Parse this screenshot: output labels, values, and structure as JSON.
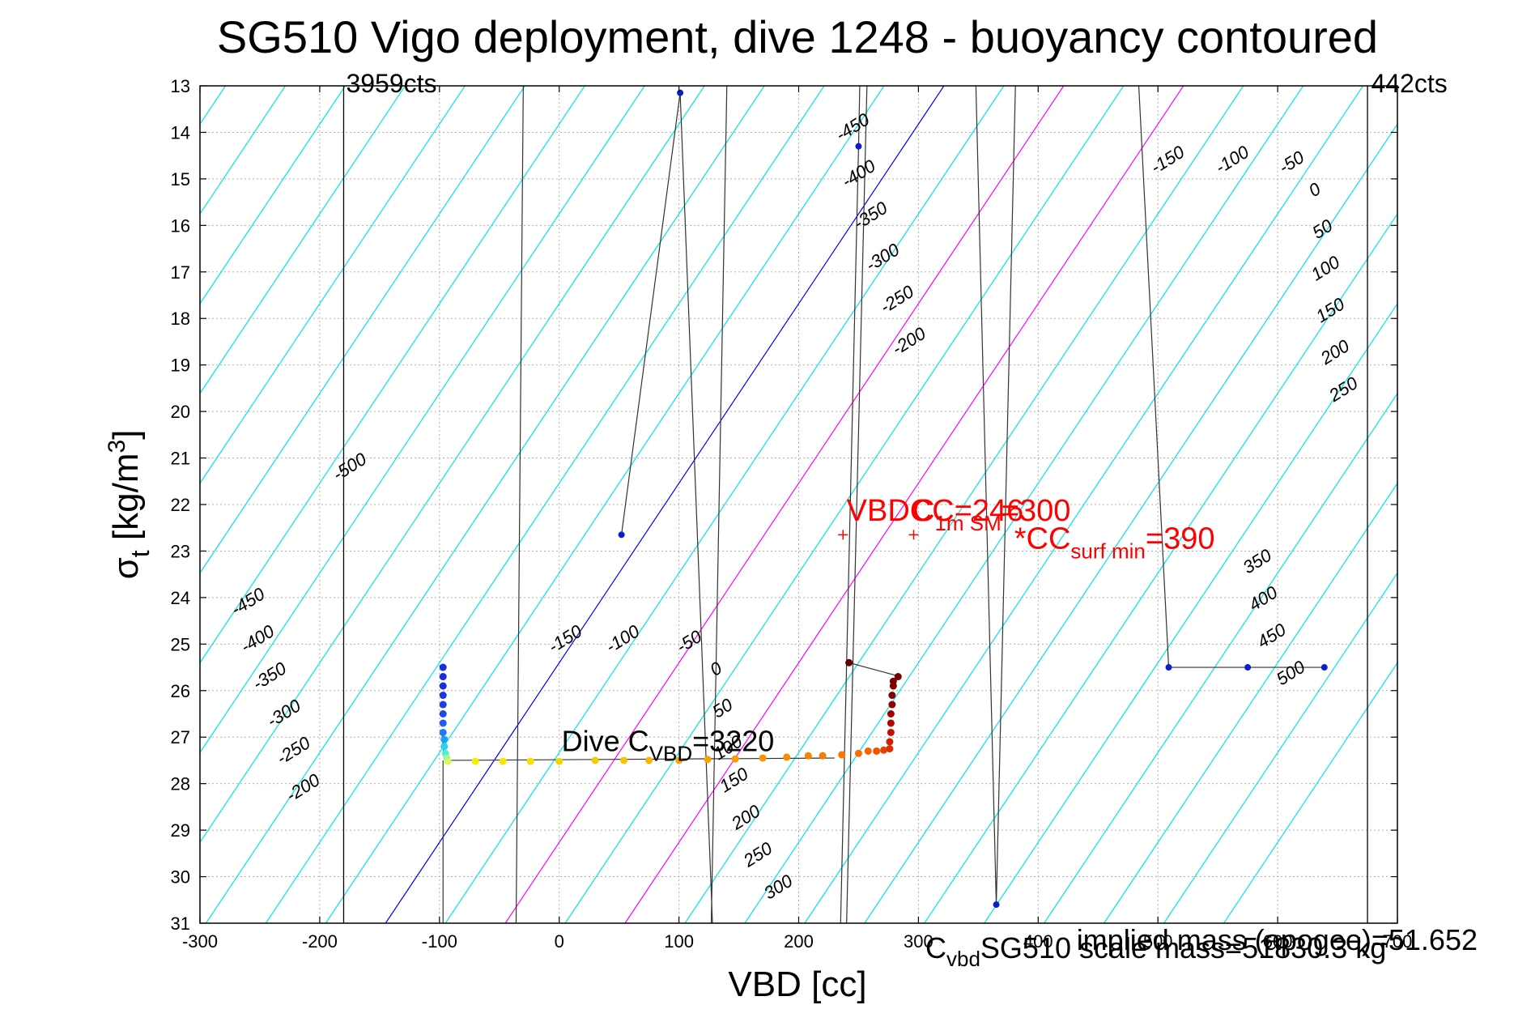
{
  "chart_data": {
    "type": "scatter",
    "title": "SG510 Vigo deployment, dive 1248 - buoyancy contoured",
    "xlabel": "VBD [cc]",
    "ylabel_main": "σ",
    "ylabel_sub": "t",
    "ylabel_unit_prefix": " [kg/m",
    "ylabel_unit_sup": "3",
    "ylabel_unit_suffix": "]",
    "xlim": [
      -300,
      700
    ],
    "ylim": [
      13,
      31
    ],
    "y_reversed": true,
    "grid": true,
    "x_ticks": [
      -300,
      -200,
      -100,
      0,
      100,
      200,
      300,
      400,
      500,
      600,
      700
    ],
    "x_tick_labels": [
      "-300",
      "-200",
      "-100",
      "0",
      "100",
      "200",
      "300",
      "400",
      "500",
      "600",
      "700"
    ],
    "y_ticks": [
      13,
      14,
      15,
      16,
      17,
      18,
      19,
      20,
      21,
      22,
      23,
      24,
      25,
      26,
      27,
      28,
      29,
      30,
      31
    ],
    "y_tick_labels": [
      "13",
      "14",
      "15",
      "16",
      "17",
      "18",
      "19",
      "20",
      "21",
      "22",
      "23",
      "24",
      "25",
      "26",
      "27",
      "28",
      "29",
      "30",
      "31"
    ],
    "contour_slope_sigma_per_cc": 0.0386,
    "contour_zero_x_at_sigma_31": -145,
    "contour_spacing_cc": 50,
    "contour_levels_cyan": [
      -500,
      -450,
      -400,
      -350,
      -300,
      -250,
      -200,
      -150,
      -100,
      -50,
      50,
      100,
      150,
      200,
      250,
      300,
      350,
      400,
      450,
      500
    ],
    "contour_levels_magenta": [
      100,
      200
    ],
    "contour_level_zero": 0,
    "colors": {
      "cyan": "#00e5e5",
      "blue": "#0000ff",
      "magenta": "#ff00ff",
      "red": "#ff0000",
      "black": "#000000",
      "grid": "#b0b0b0"
    },
    "contour_labels": [
      {
        "text": "-500",
        "x": -185,
        "y": 21.5
      },
      {
        "text": "-450",
        "x": 235,
        "y": 14.2
      },
      {
        "text": "-400",
        "x": 240,
        "y": 15.2
      },
      {
        "text": "-350",
        "x": 250,
        "y": 16.1
      },
      {
        "text": "-300",
        "x": 260,
        "y": 17.0
      },
      {
        "text": "-250",
        "x": 272,
        "y": 17.9
      },
      {
        "text": "-200",
        "x": 282,
        "y": 18.8
      },
      {
        "text": "-150",
        "x": 498,
        "y": 14.9
      },
      {
        "text": "-100",
        "x": 552,
        "y": 14.9
      },
      {
        "text": "-50",
        "x": 605,
        "y": 14.9
      },
      {
        "text": "0",
        "x": 630,
        "y": 15.4
      },
      {
        "text": "50",
        "x": 633,
        "y": 16.3
      },
      {
        "text": "100",
        "x": 632,
        "y": 17.2
      },
      {
        "text": "150",
        "x": 636,
        "y": 18.1
      },
      {
        "text": "200",
        "x": 640,
        "y": 19.0
      },
      {
        "text": "250",
        "x": 647,
        "y": 19.8
      },
      {
        "text": "-450",
        "x": -270,
        "y": 24.4
      },
      {
        "text": "-400",
        "x": -262,
        "y": 25.2
      },
      {
        "text": "-350",
        "x": -252,
        "y": 26.0
      },
      {
        "text": "-300",
        "x": -240,
        "y": 26.8
      },
      {
        "text": "-250",
        "x": -232,
        "y": 27.6
      },
      {
        "text": "-200",
        "x": -224,
        "y": 28.4
      },
      {
        "text": "-150",
        "x": -5,
        "y": 25.2
      },
      {
        "text": "-100",
        "x": 43,
        "y": 25.2
      },
      {
        "text": "-50",
        "x": 102,
        "y": 25.2
      },
      {
        "text": "0",
        "x": 130,
        "y": 25.7
      },
      {
        "text": "50",
        "x": 132,
        "y": 26.6
      },
      {
        "text": "100",
        "x": 133,
        "y": 27.5
      },
      {
        "text": "150",
        "x": 138,
        "y": 28.2
      },
      {
        "text": "200",
        "x": 148,
        "y": 29.0
      },
      {
        "text": "250",
        "x": 158,
        "y": 29.8
      },
      {
        "text": "300",
        "x": 175,
        "y": 30.5
      },
      {
        "text": "350",
        "x": 575,
        "y": 23.5
      },
      {
        "text": "400",
        "x": 580,
        "y": 24.3
      },
      {
        "text": "450",
        "x": 587,
        "y": 25.1
      },
      {
        "text": "500",
        "x": 603,
        "y": 25.9
      }
    ],
    "vertical_lines": [
      {
        "x": -180,
        "label": "3959cts",
        "label_x": -178
      },
      {
        "x": 675,
        "label": "442cts",
        "label_x": 678
      }
    ],
    "pump_trace": [
      [
        -183,
        31
      ],
      [
        -180,
        13
      ],
      [
        -30,
        13
      ],
      [
        -36,
        31
      ],
      [
        -36,
        30.6
      ],
      [
        48,
        13
      ],
      [
        55,
        13
      ],
      [
        104,
        13
      ],
      [
        106,
        31
      ],
      [
        127,
        31
      ],
      [
        127,
        30.6
      ],
      [
        140,
        13
      ],
      [
        143,
        31
      ],
      [
        163,
        31
      ],
      [
        163,
        30.6
      ],
      [
        184,
        13
      ],
      [
        191,
        31
      ],
      [
        208,
        31
      ],
      [
        208,
        30.6
      ],
      [
        227,
        13
      ],
      [
        240,
        31
      ],
      [
        240,
        29.5
      ],
      [
        257,
        13
      ],
      [
        303,
        13
      ],
      [
        307,
        31
      ]
    ],
    "black_lines": [
      [
        [
          52,
          22.65
        ],
        [
          101,
          13.15
        ],
        [
          102,
          13.1
        ],
        [
          128,
          31
        ]
      ],
      [
        [
          235,
          31
        ],
        [
          250,
          14.3
        ],
        [
          251,
          13
        ]
      ],
      [
        [
          348,
          13
        ],
        [
          365,
          30.6
        ],
        [
          366,
          31
        ],
        [
          381,
          13
        ]
      ],
      [
        [
          484,
          13
        ],
        [
          509,
          25.5
        ],
        [
          575,
          25.5
        ],
        [
          639,
          25.5
        ]
      ],
      [
        [
          242,
          25.4
        ],
        [
          285,
          25.7
        ]
      ],
      [
        [
          -98,
          26.9
        ],
        [
          -96,
          27.5
        ],
        [
          230,
          27.45
        ]
      ]
    ],
    "pump_points_blue": [
      {
        "x": 101,
        "y": 13.15
      },
      {
        "x": 250,
        "y": 14.3
      },
      {
        "x": 52,
        "y": 22.65
      },
      {
        "x": 365,
        "y": 30.6
      },
      {
        "x": 509,
        "y": 25.5
      },
      {
        "x": 575,
        "y": 25.5
      },
      {
        "x": 639,
        "y": 25.5
      }
    ],
    "dive_points": [
      {
        "x": -97,
        "y": 25.5,
        "c": "#1a2ee0"
      },
      {
        "x": -97,
        "y": 25.7,
        "c": "#1a2ee0"
      },
      {
        "x": -97,
        "y": 25.9,
        "c": "#1a2ee0"
      },
      {
        "x": -97,
        "y": 26.1,
        "c": "#1a36e6"
      },
      {
        "x": -97,
        "y": 26.3,
        "c": "#1a3ee8"
      },
      {
        "x": -97,
        "y": 26.5,
        "c": "#1a4aec"
      },
      {
        "x": -97,
        "y": 26.7,
        "c": "#1f5cf0"
      },
      {
        "x": -97,
        "y": 26.9,
        "c": "#1f78f4"
      },
      {
        "x": -96,
        "y": 27.05,
        "c": "#1ea0f8"
      },
      {
        "x": -96,
        "y": 27.2,
        "c": "#2ccff0"
      },
      {
        "x": -95,
        "y": 27.35,
        "c": "#55ecd0"
      },
      {
        "x": -94,
        "y": 27.45,
        "c": "#9ef69a"
      },
      {
        "x": -93,
        "y": 27.52,
        "c": "#d8f562"
      },
      {
        "x": -70,
        "y": 27.52,
        "c": "#f2f000"
      },
      {
        "x": -47,
        "y": 27.52,
        "c": "#f5e700"
      },
      {
        "x": -24,
        "y": 27.52,
        "c": "#f5e000"
      },
      {
        "x": 0,
        "y": 27.52,
        "c": "#f6d400"
      },
      {
        "x": 30,
        "y": 27.5,
        "c": "#f6cc00"
      },
      {
        "x": 54,
        "y": 27.5,
        "c": "#f6c400"
      },
      {
        "x": 75,
        "y": 27.5,
        "c": "#f7b800"
      },
      {
        "x": 100,
        "y": 27.5,
        "c": "#f7ac00"
      },
      {
        "x": 124,
        "y": 27.48,
        "c": "#f8a400"
      },
      {
        "x": 147,
        "y": 27.47,
        "c": "#f89c00"
      },
      {
        "x": 170,
        "y": 27.45,
        "c": "#f89400"
      },
      {
        "x": 190,
        "y": 27.43,
        "c": "#f98c00"
      },
      {
        "x": 208,
        "y": 27.4,
        "c": "#f98400"
      },
      {
        "x": 220,
        "y": 27.4,
        "c": "#f97c00"
      },
      {
        "x": 236,
        "y": 27.38,
        "c": "#fa7600"
      },
      {
        "x": 250,
        "y": 27.35,
        "c": "#fa6e00"
      },
      {
        "x": 258,
        "y": 27.3,
        "c": "#f86200"
      },
      {
        "x": 265,
        "y": 27.3,
        "c": "#f25200"
      },
      {
        "x": 271,
        "y": 27.28,
        "c": "#e84000"
      },
      {
        "x": 276,
        "y": 27.25,
        "c": "#dd3000"
      },
      {
        "x": 276,
        "y": 27.1,
        "c": "#d01e00"
      },
      {
        "x": 277,
        "y": 26.9,
        "c": "#c00e00"
      },
      {
        "x": 277,
        "y": 26.7,
        "c": "#b00600"
      },
      {
        "x": 277,
        "y": 26.5,
        "c": "#a00000"
      },
      {
        "x": 278,
        "y": 26.3,
        "c": "#900000"
      },
      {
        "x": 278,
        "y": 26.1,
        "c": "#840000"
      },
      {
        "x": 279,
        "y": 25.9,
        "c": "#800000"
      },
      {
        "x": 279,
        "y": 25.8,
        "c": "#7a0000"
      },
      {
        "x": 283,
        "y": 25.7,
        "c": "#700000"
      },
      {
        "x": 242,
        "y": 25.4,
        "c": "#600000"
      }
    ],
    "red_markers": [
      {
        "x": 237,
        "y": 22.65
      },
      {
        "x": 296,
        "y": 22.65
      }
    ],
    "annotations": {
      "vbd_cc_text": "VBDCC=246",
      "vbd_cc_x": 240,
      "vbd_cc_y": 22.35,
      "c1m_main": "C",
      "c1m_sub": "1m SM",
      "c1m_value": "=300",
      "c1m_x": 295,
      "c1m_y": 22.35,
      "csurf_main": "*CC",
      "csurf_sub": "surf min",
      "csurf_value": "=390",
      "csurf_x": 380,
      "csurf_y": 22.95,
      "dive_main": "Dive C",
      "dive_sub": "VBD",
      "dive_value": "=3220",
      "dive_x": 2,
      "dive_y": 27.3
    },
    "footer_notes": {
      "implied_mass": "implied mass (apogee)=51.652",
      "scale_mass_main": "C",
      "scale_mass_sub": "vbd",
      "scale_mass_text": "SG510 scale mass=51830.3 kg"
    }
  }
}
